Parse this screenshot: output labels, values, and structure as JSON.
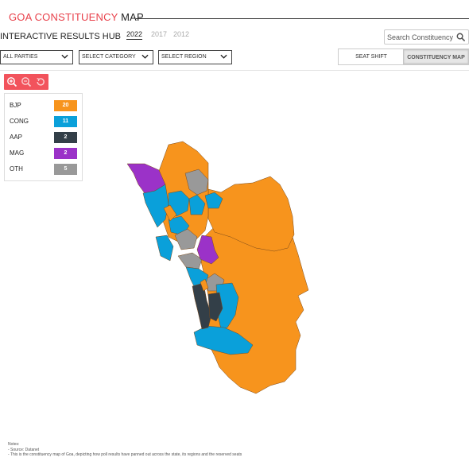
{
  "header": {
    "title_accent": "GOA CONSTITUENCY",
    "title_plain": "MAP",
    "subtitle": "INTERACTIVE RESULTS HUB",
    "years": [
      "2022",
      "2017",
      "2012"
    ],
    "active_year": "2022"
  },
  "search": {
    "placeholder": "Search Constituency",
    "value": ""
  },
  "filters": {
    "party": "ALL PARTIES",
    "category": "SELECT CATEGORY",
    "region": "SELECT REGION"
  },
  "view_toggle": {
    "options": [
      "SEAT SHIFT",
      "CONSTITUENCY MAP"
    ],
    "active": "CONSTITUENCY MAP"
  },
  "zoom_controls": [
    "zoom-in-icon",
    "zoom-out-icon",
    "reset-icon"
  ],
  "legend": [
    {
      "party": "BJP",
      "seats": "20",
      "color": "#f7941d"
    },
    {
      "party": "CONG",
      "seats": "11",
      "color": "#0aa0da"
    },
    {
      "party": "AAP",
      "seats": "2",
      "color": "#333f48"
    },
    {
      "party": "MAG",
      "seats": "2",
      "color": "#9b32c8"
    },
    {
      "party": "OTH",
      "seats": "5",
      "color": "#999999"
    }
  ],
  "colors": {
    "accent": "#e8404a",
    "zoom_bar": "#f2535c",
    "border": "#7a4a1c"
  },
  "notes": {
    "heading": "Notes:",
    "lines": [
      "- Source: Datanet",
      "- This is the constituency map of Goa, depicting how poll results have panned out across the state, its regions and the reserved seats"
    ]
  }
}
